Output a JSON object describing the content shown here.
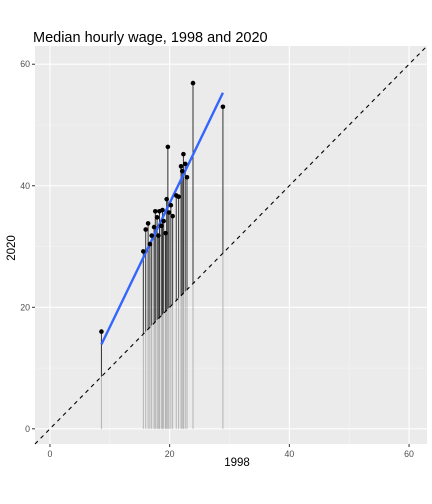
{
  "chart_data": {
    "type": "scatter",
    "title": "Median hourly wage, 1998 and 2020",
    "xlabel": "1998",
    "ylabel": "2020",
    "xlim": [
      -2.5,
      63
    ],
    "ylim": [
      -2.5,
      63
    ],
    "x_ticks": [
      0,
      20,
      40,
      60
    ],
    "y_ticks": [
      0,
      20,
      40,
      60
    ],
    "grid": true,
    "reference_line": {
      "type": "identity",
      "style": "dashed",
      "color": "#000000"
    },
    "trend_line": {
      "type": "linear",
      "color": "#3366FF",
      "start": [
        8.6,
        13.9
      ],
      "end": [
        28.9,
        55.3
      ]
    },
    "points": [
      {
        "x": 8.6,
        "y": 16.0
      },
      {
        "x": 15.6,
        "y": 29.2
      },
      {
        "x": 16.0,
        "y": 32.8
      },
      {
        "x": 16.4,
        "y": 33.8
      },
      {
        "x": 16.7,
        "y": 30.4
      },
      {
        "x": 17.0,
        "y": 31.8
      },
      {
        "x": 17.4,
        "y": 33.2
      },
      {
        "x": 17.6,
        "y": 35.8
      },
      {
        "x": 17.9,
        "y": 34.8
      },
      {
        "x": 18.1,
        "y": 31.8
      },
      {
        "x": 18.3,
        "y": 35.8
      },
      {
        "x": 18.6,
        "y": 33.4
      },
      {
        "x": 18.8,
        "y": 36.0
      },
      {
        "x": 19.0,
        "y": 34.2
      },
      {
        "x": 19.3,
        "y": 32.2
      },
      {
        "x": 19.5,
        "y": 37.8
      },
      {
        "x": 19.7,
        "y": 46.4
      },
      {
        "x": 19.9,
        "y": 35.6
      },
      {
        "x": 20.2,
        "y": 36.8
      },
      {
        "x": 20.5,
        "y": 35.0
      },
      {
        "x": 21.1,
        "y": 38.4
      },
      {
        "x": 21.5,
        "y": 38.2
      },
      {
        "x": 21.9,
        "y": 43.2
      },
      {
        "x": 22.1,
        "y": 42.4
      },
      {
        "x": 22.3,
        "y": 45.2
      },
      {
        "x": 22.6,
        "y": 43.6
      },
      {
        "x": 22.9,
        "y": 41.4
      },
      {
        "x": 23.9,
        "y": 56.9
      },
      {
        "x": 28.9,
        "y": 53.0
      }
    ]
  },
  "colors": {
    "panel_background": "#EBEBEB",
    "grid_major": "#FFFFFF",
    "grid_minor": "#F4F4F4",
    "segment_dark": "#333333",
    "segment_light": "#B3B3B3",
    "point": "#000000",
    "tick_text": "#4D4D4D"
  }
}
